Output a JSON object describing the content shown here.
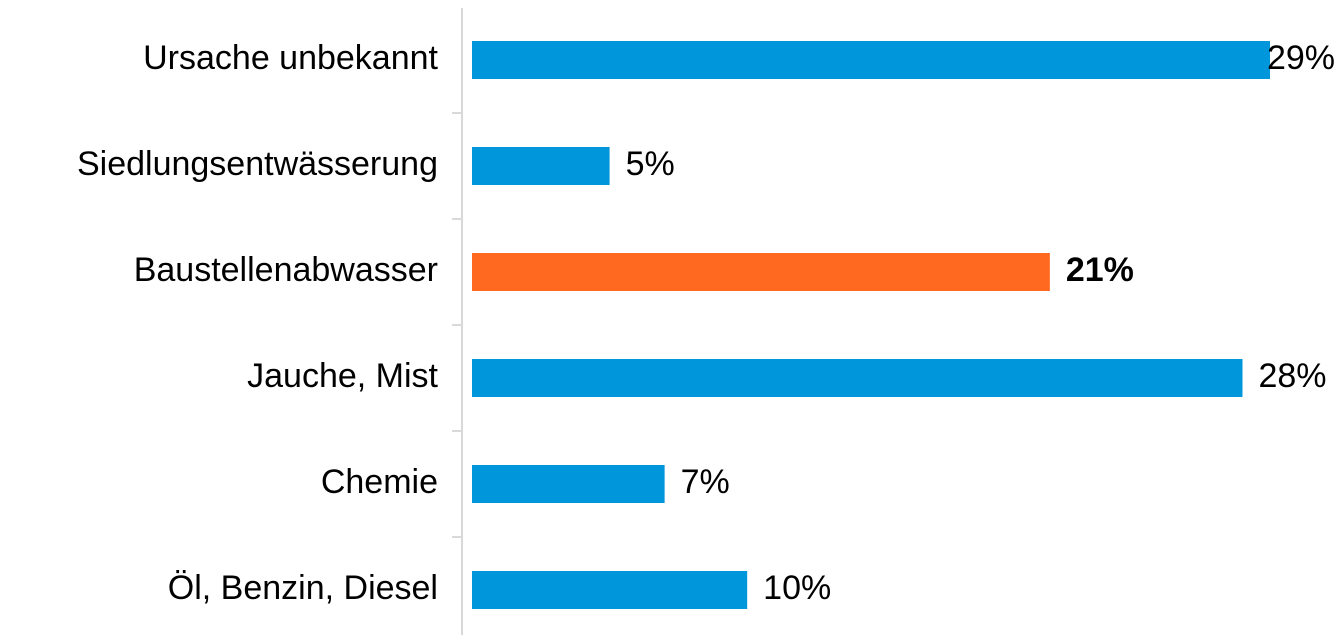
{
  "chart_data": {
    "type": "barh",
    "categories": [
      "Ursache unbekannt",
      "Siedlungsentwässerung",
      "Baustellenabwasser",
      "Jauche, Mist",
      "Chemie",
      "Öl, Benzin, Diesel"
    ],
    "values": [
      29,
      5,
      21,
      28,
      7,
      10
    ],
    "value_labels": [
      "29%",
      "5%",
      "21%",
      "28%",
      "7%",
      "10%"
    ],
    "color": "#0096dc",
    "colors": [
      "#0096dc",
      "#0096dc",
      "#ff6a20",
      "#0096dc",
      "#0096dc",
      "#0096dc"
    ]
  }
}
